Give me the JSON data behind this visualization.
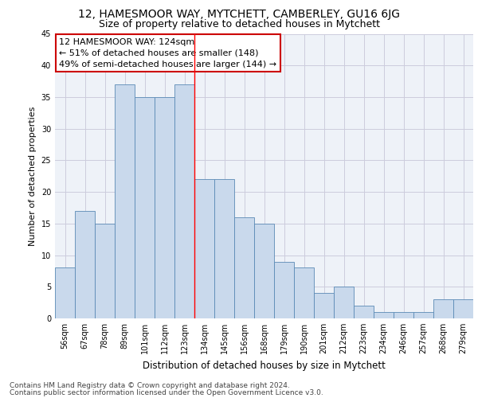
{
  "title1": "12, HAMESMOOR WAY, MYTCHETT, CAMBERLEY, GU16 6JG",
  "title2": "Size of property relative to detached houses in Mytchett",
  "xlabel": "Distribution of detached houses by size in Mytchett",
  "ylabel": "Number of detached properties",
  "categories": [
    "56sqm",
    "67sqm",
    "78sqm",
    "89sqm",
    "101sqm",
    "112sqm",
    "123sqm",
    "134sqm",
    "145sqm",
    "156sqm",
    "168sqm",
    "179sqm",
    "190sqm",
    "201sqm",
    "212sqm",
    "223sqm",
    "234sqm",
    "246sqm",
    "257sqm",
    "268sqm",
    "279sqm"
  ],
  "values": [
    8,
    17,
    15,
    37,
    35,
    35,
    37,
    22,
    22,
    16,
    15,
    9,
    8,
    4,
    5,
    2,
    1,
    1,
    1,
    3,
    3
  ],
  "bar_color": "#c9d9ec",
  "bar_edge_color": "#5a8ab5",
  "red_line_index": 6.5,
  "annotation_text": "12 HAMESMOOR WAY: 124sqm\n← 51% of detached houses are smaller (148)\n49% of semi-detached houses are larger (144) →",
  "annotation_box_color": "#ffffff",
  "annotation_box_edge": "#cc0000",
  "footer1": "Contains HM Land Registry data © Crown copyright and database right 2024.",
  "footer2": "Contains public sector information licensed under the Open Government Licence v3.0.",
  "ylim": [
    0,
    45
  ],
  "yticks": [
    0,
    5,
    10,
    15,
    20,
    25,
    30,
    35,
    40,
    45
  ],
  "grid_color": "#ccccdd",
  "bg_color": "#eef2f8",
  "title1_fontsize": 10,
  "title2_fontsize": 9,
  "xlabel_fontsize": 8.5,
  "ylabel_fontsize": 8,
  "tick_fontsize": 7,
  "annotation_fontsize": 8,
  "footer_fontsize": 6.5
}
